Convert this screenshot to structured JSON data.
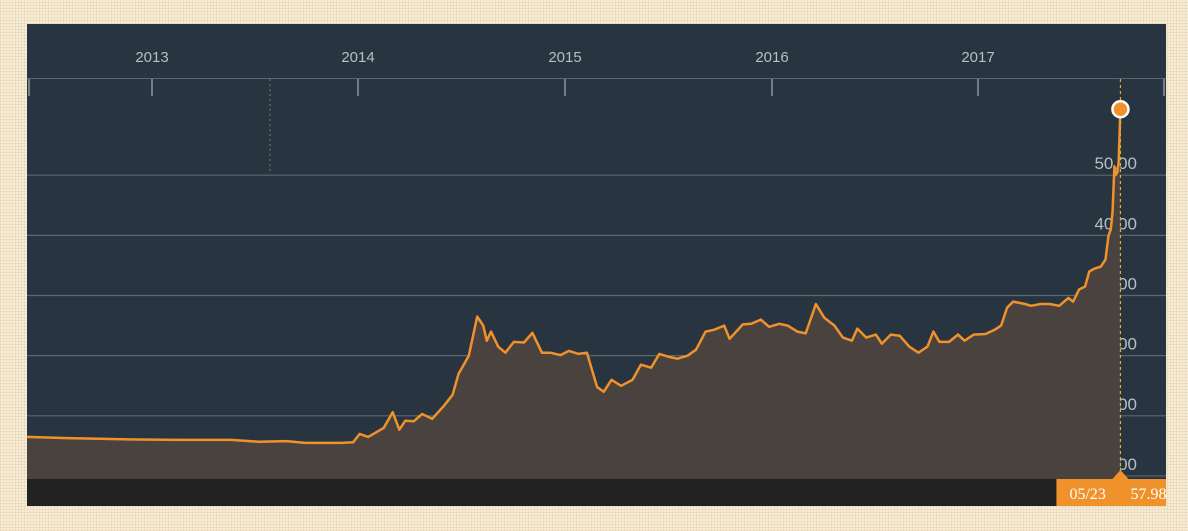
{
  "colors": {
    "background": "#283440",
    "line": "#f0922b",
    "area": "#4a423e",
    "grid": "#5d6672",
    "axis_text": "#b7bec6",
    "bottom_bar": "#222222",
    "readout_bg": "#f0922b"
  },
  "readout": {
    "date": "05/23",
    "value": "57.98"
  },
  "chart_data": {
    "type": "area",
    "title": "",
    "xlabel": "",
    "ylabel": "",
    "x_tick_labels": [
      "2013",
      "2014",
      "2015",
      "2016",
      "2017"
    ],
    "y_tick_labels": [
      "0.00",
      "10.00",
      "20.00",
      "30.00",
      "40.00",
      "50.00"
    ],
    "ylim": [
      -3.5,
      63
    ],
    "xlim": [
      "2012-05-25",
      "2017-08-07"
    ],
    "grid": true,
    "series": [
      {
        "values": [
          [
            "2012-05-25",
            3.5
          ],
          [
            "2012-08-01",
            3.3
          ],
          [
            "2012-11-01",
            3.1
          ],
          [
            "2013-02-01",
            3.0
          ],
          [
            "2013-05-01",
            3.0
          ],
          [
            "2013-06-15",
            2.7
          ],
          [
            "2013-08-01",
            2.8
          ],
          [
            "2013-09-01",
            2.5
          ],
          [
            "2013-11-01",
            2.5
          ],
          [
            "2013-11-20",
            2.6
          ],
          [
            "2013-12-01",
            4.0
          ],
          [
            "2013-12-15",
            3.5
          ],
          [
            "2014-01-10",
            5.0
          ],
          [
            "2014-01-25",
            7.6
          ],
          [
            "2014-02-05",
            4.7
          ],
          [
            "2014-02-15",
            6.2
          ],
          [
            "2014-03-01",
            6.1
          ],
          [
            "2014-03-15",
            7.3
          ],
          [
            "2014-04-01",
            6.5
          ],
          [
            "2014-04-20",
            8.6
          ],
          [
            "2014-05-05",
            10.5
          ],
          [
            "2014-05-15",
            14.0
          ],
          [
            "2014-06-01",
            17.0
          ],
          [
            "2014-06-15",
            23.5
          ],
          [
            "2014-06-25",
            22.0
          ],
          [
            "2014-07-01",
            19.5
          ],
          [
            "2014-07-08",
            21.0
          ],
          [
            "2014-07-20",
            18.5
          ],
          [
            "2014-08-01",
            17.5
          ],
          [
            "2014-08-15",
            19.3
          ],
          [
            "2014-09-01",
            19.2
          ],
          [
            "2014-09-15",
            20.8
          ],
          [
            "2014-10-01",
            17.5
          ],
          [
            "2014-10-15",
            17.5
          ],
          [
            "2014-11-01",
            17.1
          ],
          [
            "2014-11-15",
            17.8
          ],
          [
            "2014-12-01",
            17.3
          ],
          [
            "2014-12-15",
            17.5
          ],
          [
            "2015-01-01",
            11.8
          ],
          [
            "2015-01-12",
            11.0
          ],
          [
            "2015-01-25",
            13.0
          ],
          [
            "2015-02-10",
            12.0
          ],
          [
            "2015-03-01",
            13.0
          ],
          [
            "2015-03-15",
            15.5
          ],
          [
            "2015-04-01",
            15.0
          ],
          [
            "2015-04-15",
            17.3
          ],
          [
            "2015-05-01",
            16.8
          ],
          [
            "2015-05-15",
            16.5
          ],
          [
            "2015-06-01",
            17.0
          ],
          [
            "2015-06-15",
            18.0
          ],
          [
            "2015-07-01",
            21.0
          ],
          [
            "2015-07-15",
            21.3
          ],
          [
            "2015-08-01",
            22.0
          ],
          [
            "2015-08-10",
            19.8
          ],
          [
            "2015-09-01",
            22.2
          ],
          [
            "2015-09-15",
            22.3
          ],
          [
            "2015-10-01",
            23.0
          ],
          [
            "2015-10-15",
            21.8
          ],
          [
            "2015-11-01",
            22.3
          ],
          [
            "2015-11-15",
            22.0
          ],
          [
            "2015-12-01",
            21.0
          ],
          [
            "2015-12-15",
            20.7
          ],
          [
            "2016-01-01",
            25.6
          ],
          [
            "2016-01-15",
            23.3
          ],
          [
            "2016-02-01",
            22.0
          ],
          [
            "2016-02-15",
            20.0
          ],
          [
            "2016-03-01",
            19.5
          ],
          [
            "2016-03-10",
            21.5
          ],
          [
            "2016-03-25",
            20.0
          ],
          [
            "2016-04-10",
            20.5
          ],
          [
            "2016-04-20",
            19.0
          ],
          [
            "2016-05-05",
            20.5
          ],
          [
            "2016-05-20",
            20.3
          ],
          [
            "2016-06-05",
            18.5
          ],
          [
            "2016-06-20",
            17.5
          ],
          [
            "2016-07-05",
            18.5
          ],
          [
            "2016-07-15",
            21.0
          ],
          [
            "2016-07-25",
            19.3
          ],
          [
            "2016-08-10",
            19.3
          ],
          [
            "2016-08-25",
            20.5
          ],
          [
            "2016-09-05",
            19.5
          ],
          [
            "2016-09-20",
            20.5
          ],
          [
            "2016-10-10",
            20.6
          ],
          [
            "2016-10-25",
            21.3
          ],
          [
            "2016-11-05",
            22.0
          ],
          [
            "2016-11-15",
            25.0
          ],
          [
            "2016-11-25",
            26.0
          ],
          [
            "2016-12-15",
            25.6
          ],
          [
            "2016-12-25",
            25.3
          ],
          [
            "2017-01-10",
            25.6
          ],
          [
            "2017-01-25",
            25.6
          ],
          [
            "2017-02-10",
            25.3
          ],
          [
            "2017-02-25",
            26.6
          ],
          [
            "2017-03-05",
            26.0
          ],
          [
            "2017-03-15",
            28.0
          ],
          [
            "2017-03-25",
            28.5
          ],
          [
            "2017-04-01",
            31.0
          ],
          [
            "2017-04-10",
            31.5
          ],
          [
            "2017-04-20",
            31.8
          ],
          [
            "2017-04-28",
            33.0
          ],
          [
            "2017-05-03",
            37.0
          ],
          [
            "2017-05-07",
            38.0
          ],
          [
            "2017-05-10",
            41.0
          ],
          [
            "2017-05-13",
            48.5
          ],
          [
            "2017-05-15",
            47.0
          ],
          [
            "2017-05-18",
            47.5
          ],
          [
            "2017-05-20",
            49.0
          ],
          [
            "2017-05-23",
            57.98
          ]
        ]
      }
    ]
  }
}
